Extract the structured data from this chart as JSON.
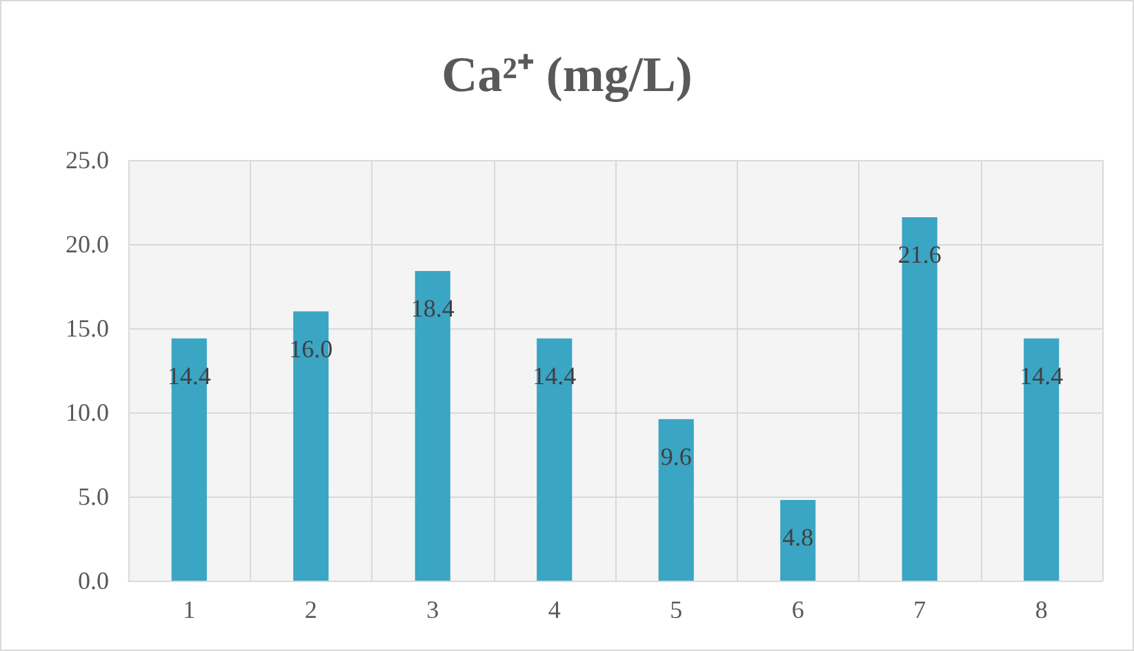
{
  "chart_data": {
    "type": "bar",
    "title": "Ca²⁺ (mg/L)",
    "categories": [
      "1",
      "2",
      "3",
      "4",
      "5",
      "6",
      "7",
      "8"
    ],
    "values": [
      14.4,
      16.0,
      18.4,
      14.4,
      9.6,
      4.8,
      21.6,
      14.4
    ],
    "value_labels": [
      "14.4",
      "16.0",
      "18.4",
      "14.4",
      "9.6",
      "4.8",
      "21.6",
      "14.4"
    ],
    "color": "#3ba5c4",
    "ylim": [
      0,
      25
    ],
    "yticks": [
      {
        "value": 0,
        "label": "0.0"
      },
      {
        "value": 5,
        "label": "5.0"
      },
      {
        "value": 10,
        "label": "10.0"
      },
      {
        "value": 15,
        "label": "15.0"
      },
      {
        "value": 20,
        "label": "20.0"
      },
      {
        "value": 25,
        "label": "25.0"
      }
    ],
    "grid": true
  }
}
